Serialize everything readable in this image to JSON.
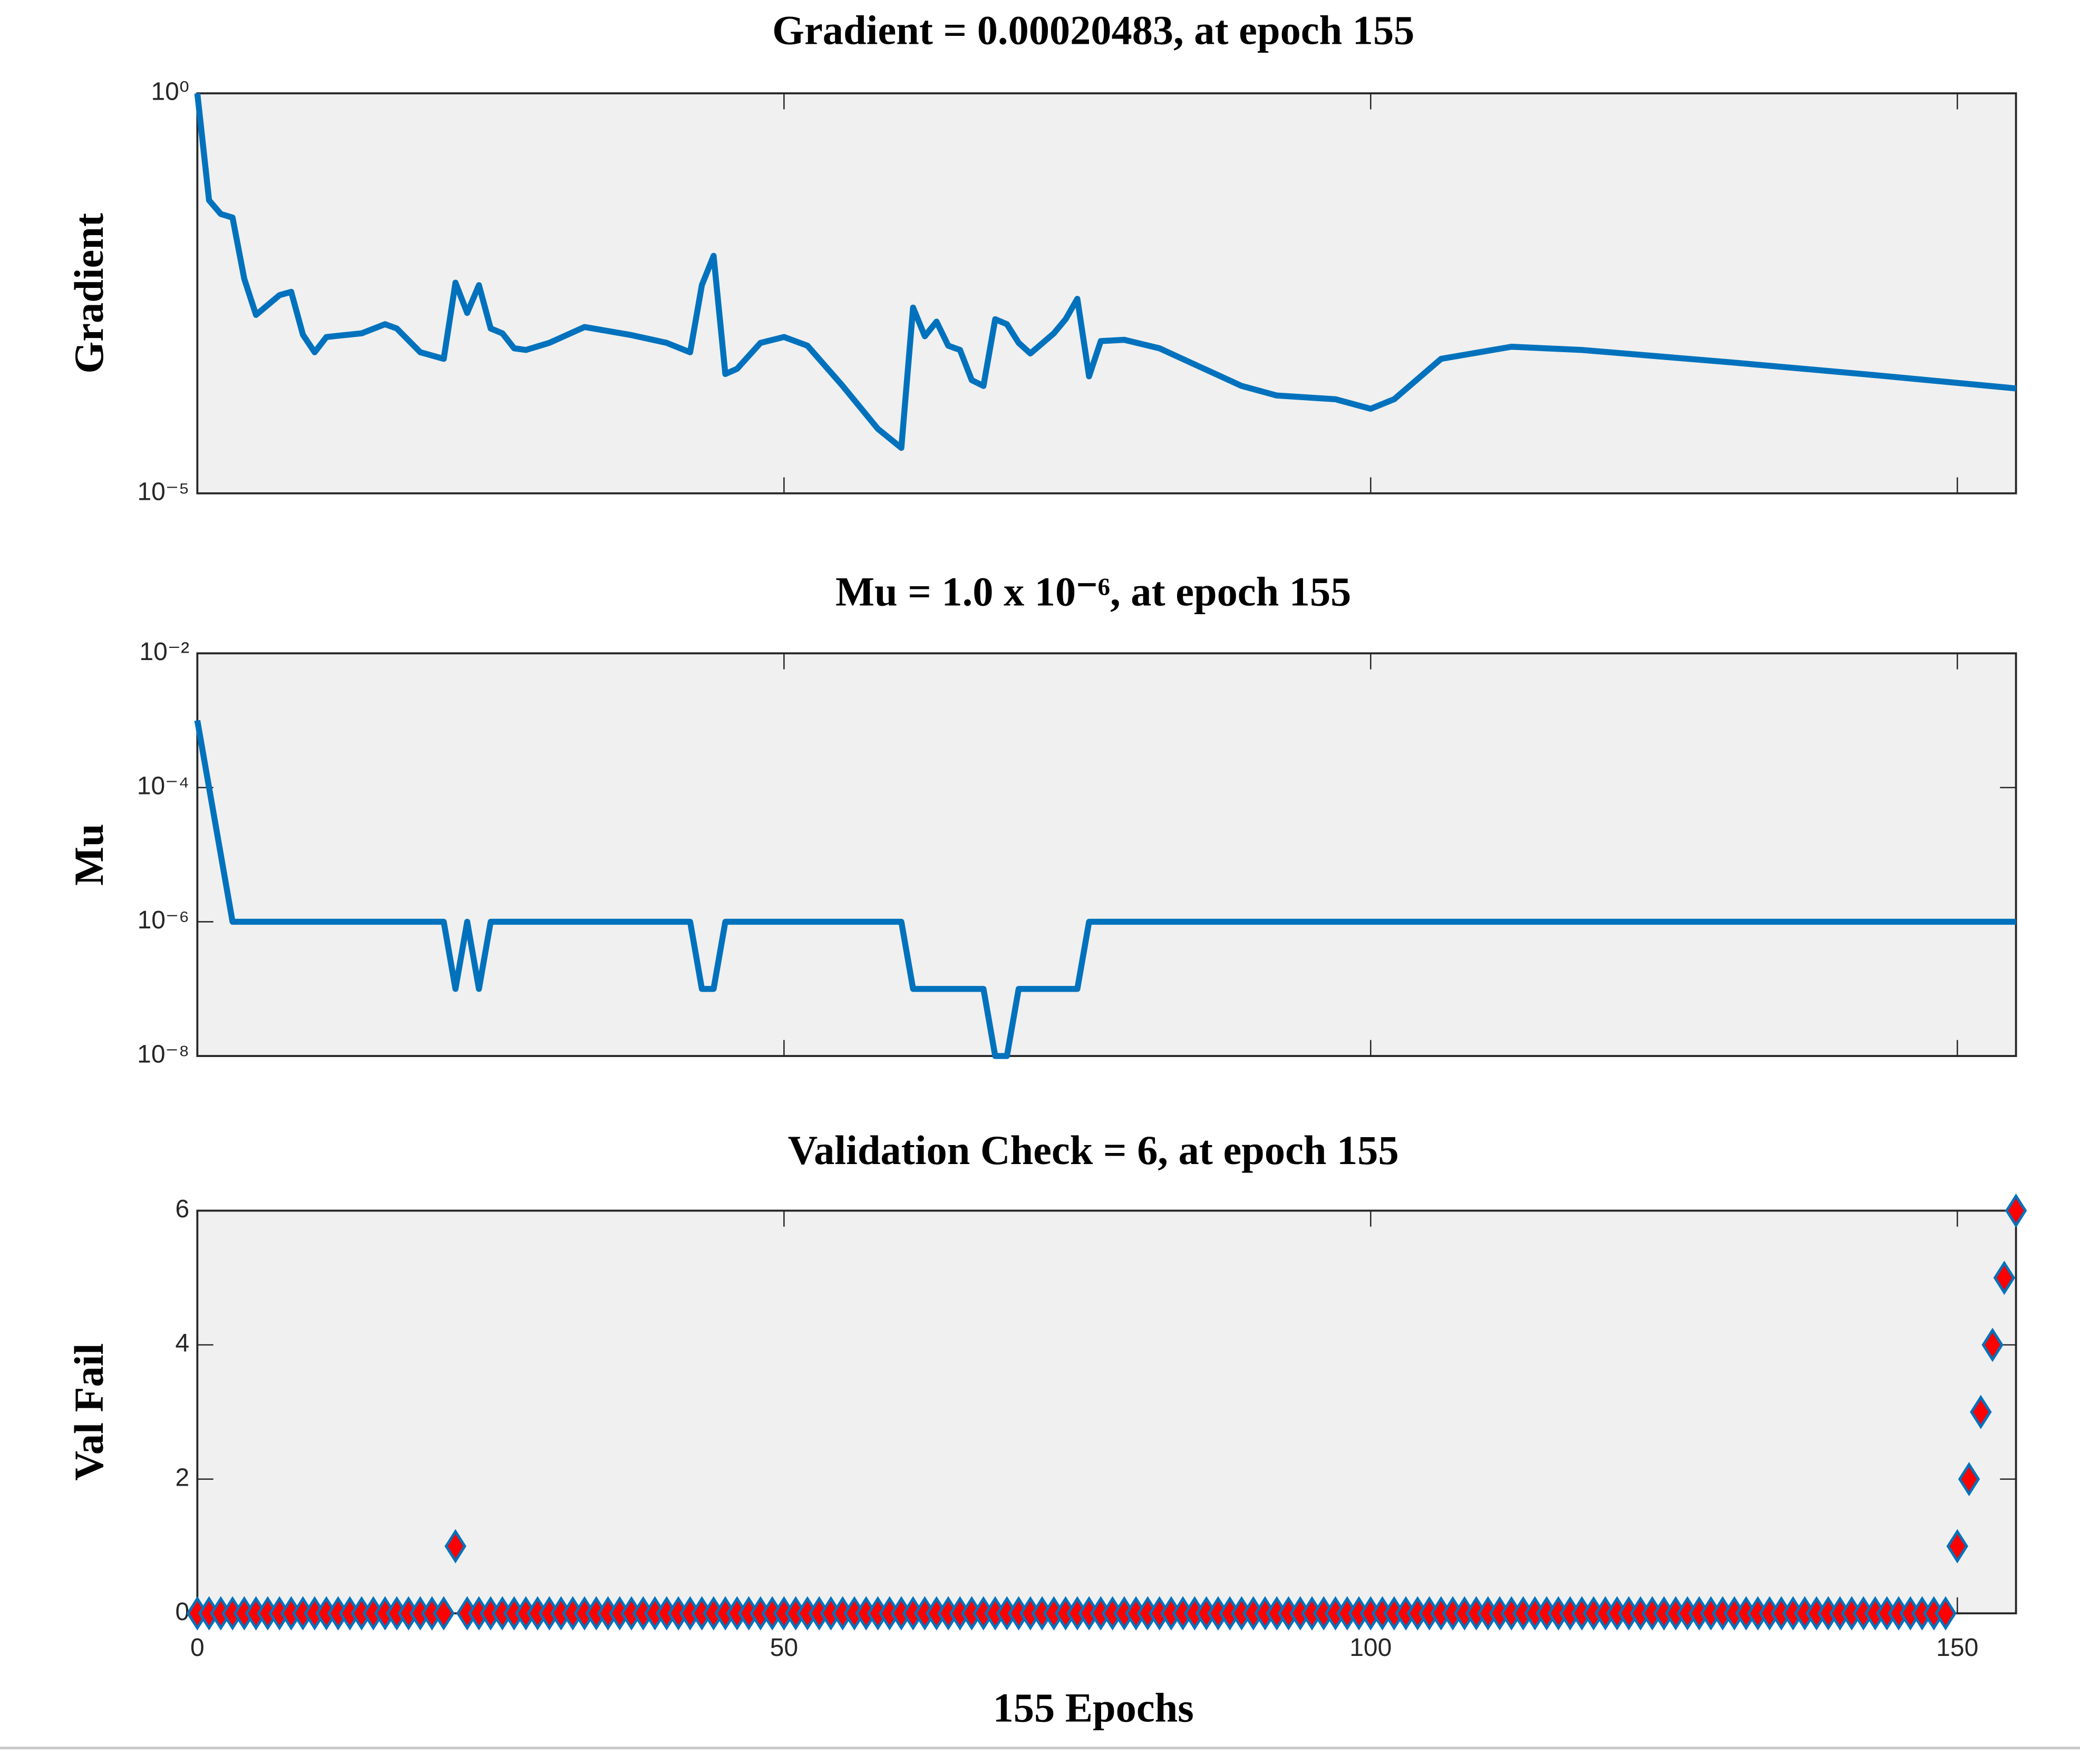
{
  "chart_data": [
    {
      "type": "line",
      "title": "Gradient = 0.00020483, at epoch 155",
      "ylabel": "Gradient",
      "log_y": true,
      "color": "#0072bd",
      "x": [
        0,
        1,
        2,
        3,
        4,
        5,
        7,
        8,
        9,
        10,
        11,
        14,
        16,
        17,
        19,
        21,
        22,
        23,
        24,
        25,
        26,
        27,
        28,
        30,
        33,
        37,
        40,
        42,
        43,
        44,
        45,
        46,
        48,
        50,
        52,
        55,
        58,
        60,
        61,
        62,
        63,
        64,
        65,
        66,
        67,
        68,
        69,
        70,
        71,
        73,
        74,
        75,
        76,
        77,
        79,
        82,
        86,
        89,
        92,
        97,
        100,
        102,
        106,
        112,
        118,
        131,
        143,
        155
      ],
      "values": [
        1,
        0.046,
        0.031,
        0.028,
        0.0048,
        0.0017,
        0.003,
        0.0033,
        0.00096,
        0.00058,
        0.0009,
        0.001,
        0.0013,
        0.00115,
        0.00058,
        0.00048,
        0.0043,
        0.0018,
        0.004,
        0.00115,
        0.001,
        0.00065,
        0.00062,
        0.00076,
        0.0012,
        0.00095,
        0.00076,
        0.00058,
        0.004,
        0.0093,
        0.00031,
        0.00036,
        0.00076,
        0.0009,
        0.0007,
        0.00022,
        6.4e-05,
        3.7e-05,
        0.0021,
        0.00092,
        0.0014,
        0.0007,
        0.00062,
        0.00026,
        0.00022,
        0.0015,
        0.0013,
        0.00076,
        0.00056,
        0.001,
        0.0015,
        0.0027,
        0.00029,
        0.0008,
        0.00083,
        0.00065,
        0.00035,
        0.00022,
        0.000167,
        0.00015,
        0.000114,
        0.00015,
        0.00048,
        0.00068,
        0.00062,
        0.00043,
        0.0003,
        0.00020483
      ],
      "xlim": [
        0,
        155
      ],
      "xticks": [
        0,
        50,
        100,
        150
      ],
      "xtick_labels": false,
      "ylim": [
        1e-05,
        1
      ],
      "yticks": [
        {
          "value": 1e-05,
          "label": "10⁻⁵"
        },
        {
          "value": 1,
          "label": "10⁰"
        }
      ]
    },
    {
      "type": "line",
      "title": "Mu = 1.0 x 10⁻⁶, at epoch 155",
      "ylabel": "Mu",
      "log_y": true,
      "color": "#0072bd",
      "x": [
        0,
        1,
        2,
        3,
        21,
        22,
        23,
        24,
        25,
        42,
        43,
        44,
        45,
        60,
        61,
        67,
        68,
        69,
        70,
        75,
        76,
        155
      ],
      "values": [
        0.001,
        0.0001,
        1e-05,
        1e-06,
        1e-06,
        1e-07,
        1e-06,
        1e-07,
        1e-06,
        1e-06,
        1e-07,
        1e-07,
        1e-06,
        1e-06,
        1e-07,
        1e-07,
        1e-08,
        1e-08,
        1e-07,
        1e-07,
        1e-06,
        1e-06
      ],
      "xlim": [
        0,
        155
      ],
      "xticks": [
        0,
        50,
        100,
        150
      ],
      "xtick_labels": false,
      "ylim": [
        1e-08,
        0.01
      ],
      "yticks": [
        {
          "value": 1e-08,
          "label": "10⁻⁸"
        },
        {
          "value": 1e-06,
          "label": "10⁻⁶"
        },
        {
          "value": 0.0001,
          "label": "10⁻⁴"
        },
        {
          "value": 0.01,
          "label": "10⁻²"
        }
      ]
    },
    {
      "type": "scatter",
      "title": "Validation Check = 6, at epoch 155",
      "ylabel": "Val Fail",
      "xlabel": "155 Epochs",
      "color": "#0072bd",
      "marker_fill": "#ff0000",
      "x": [
        0,
        1,
        2,
        3,
        4,
        5,
        6,
        7,
        8,
        9,
        10,
        11,
        12,
        13,
        14,
        15,
        16,
        17,
        18,
        19,
        20,
        21,
        22,
        23,
        24,
        25,
        26,
        27,
        28,
        29,
        30,
        31,
        32,
        33,
        34,
        35,
        36,
        37,
        38,
        39,
        40,
        41,
        42,
        43,
        44,
        45,
        46,
        47,
        48,
        49,
        50,
        51,
        52,
        53,
        54,
        55,
        56,
        57,
        58,
        59,
        60,
        61,
        62,
        63,
        64,
        65,
        66,
        67,
        68,
        69,
        70,
        71,
        72,
        73,
        74,
        75,
        76,
        77,
        78,
        79,
        80,
        81,
        82,
        83,
        84,
        85,
        86,
        87,
        88,
        89,
        90,
        91,
        92,
        93,
        94,
        95,
        96,
        97,
        98,
        99,
        100,
        101,
        102,
        103,
        104,
        105,
        106,
        107,
        108,
        109,
        110,
        111,
        112,
        113,
        114,
        115,
        116,
        117,
        118,
        119,
        120,
        121,
        122,
        123,
        124,
        125,
        126,
        127,
        128,
        129,
        130,
        131,
        132,
        133,
        134,
        135,
        136,
        137,
        138,
        139,
        140,
        141,
        142,
        143,
        144,
        145,
        146,
        147,
        148,
        149,
        150,
        151,
        152,
        153,
        154,
        155
      ],
      "values": [
        0,
        0,
        0,
        0,
        0,
        0,
        0,
        0,
        0,
        0,
        0,
        0,
        0,
        0,
        0,
        0,
        0,
        0,
        0,
        0,
        0,
        0,
        1,
        0,
        0,
        0,
        0,
        0,
        0,
        0,
        0,
        0,
        0,
        0,
        0,
        0,
        0,
        0,
        0,
        0,
        0,
        0,
        0,
        0,
        0,
        0,
        0,
        0,
        0,
        0,
        0,
        0,
        0,
        0,
        0,
        0,
        0,
        0,
        0,
        0,
        0,
        0,
        0,
        0,
        0,
        0,
        0,
        0,
        0,
        0,
        0,
        0,
        0,
        0,
        0,
        0,
        0,
        0,
        0,
        0,
        0,
        0,
        0,
        0,
        0,
        0,
        0,
        0,
        0,
        0,
        0,
        0,
        0,
        0,
        0,
        0,
        0,
        0,
        0,
        0,
        0,
        0,
        0,
        0,
        0,
        0,
        0,
        0,
        0,
        0,
        0,
        0,
        0,
        0,
        0,
        0,
        0,
        0,
        0,
        0,
        0,
        0,
        0,
        0,
        0,
        0,
        0,
        0,
        0,
        0,
        0,
        0,
        0,
        0,
        0,
        0,
        0,
        0,
        0,
        0,
        0,
        0,
        0,
        0,
        0,
        0,
        0,
        0,
        0,
        0,
        1,
        2,
        3,
        4,
        5,
        6
      ],
      "xlim": [
        0,
        155
      ],
      "xticks": [
        0,
        50,
        100,
        150
      ],
      "ylim": [
        0,
        6
      ],
      "yticks": [
        0,
        2,
        4,
        6
      ]
    }
  ]
}
